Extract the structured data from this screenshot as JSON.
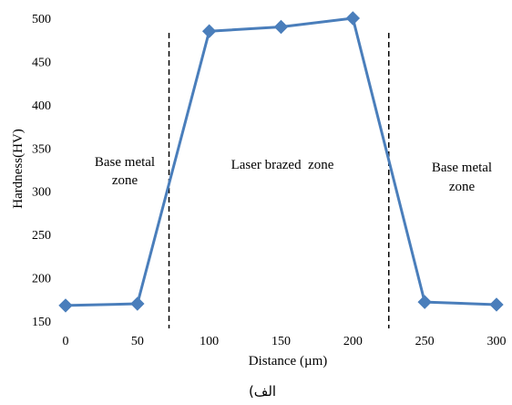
{
  "chart_data": {
    "type": "line",
    "xlabel": "Distance (µm)",
    "ylabel": "Hardness(HV)",
    "xlim": [
      0,
      300
    ],
    "ylim": [
      150,
      500
    ],
    "xticks": [
      0,
      50,
      100,
      150,
      200,
      250,
      300
    ],
    "yticks": [
      150,
      200,
      250,
      300,
      350,
      400,
      450,
      500
    ],
    "series": [
      {
        "x": [
          0,
          50,
          100,
          150,
          200,
          250,
          300
        ],
        "y": [
          168,
          170,
          485,
          490,
          500,
          172,
          169
        ],
        "color": "#4a7ebb",
        "marker": "diamond"
      }
    ],
    "dashed_lines_x": [
      72,
      225
    ],
    "annotations": {
      "left_zone": [
        "Base metal",
        "zone"
      ],
      "middle_zone": "Laser brazed  zone",
      "right_zone": [
        "Base metal",
        "zone"
      ]
    },
    "grid": false,
    "caption": "الف)"
  }
}
